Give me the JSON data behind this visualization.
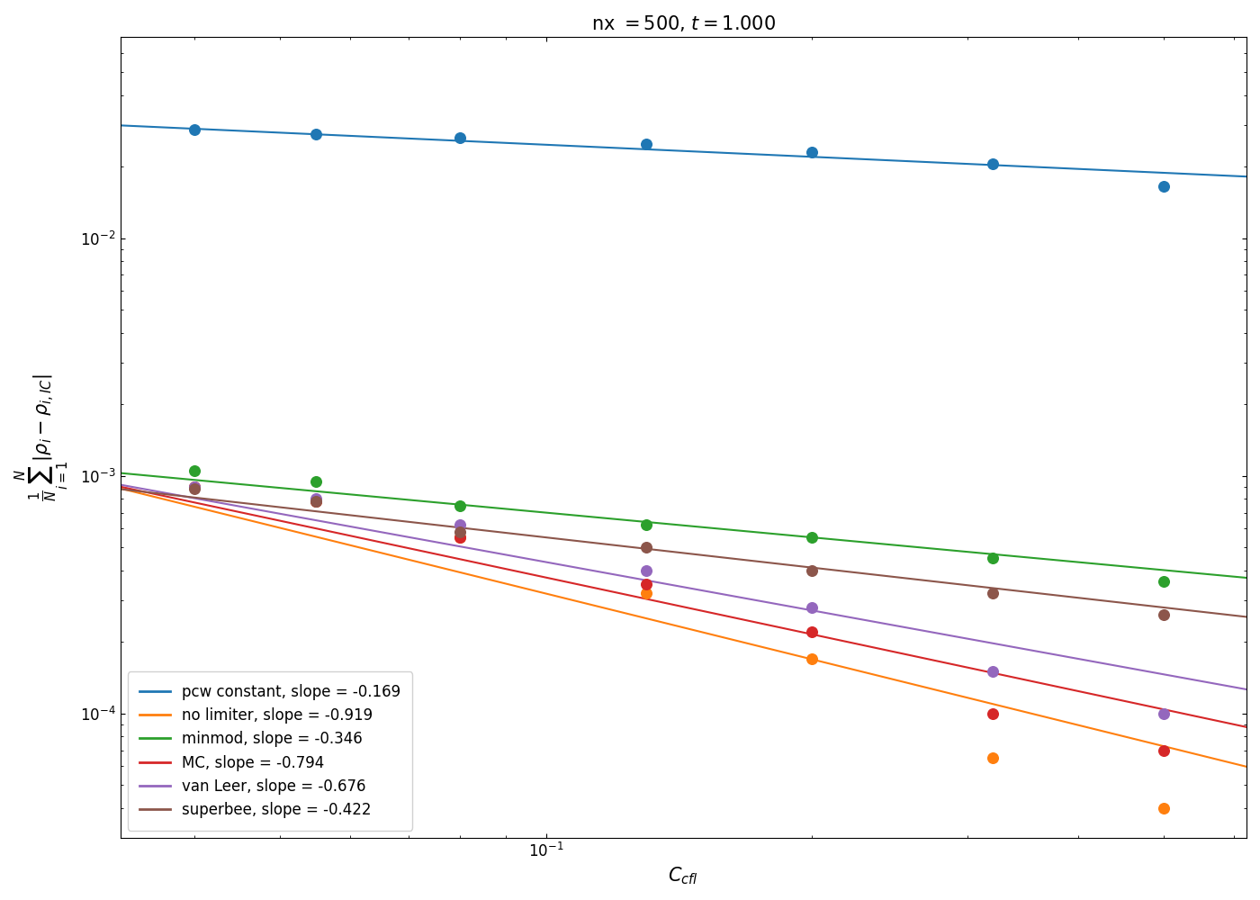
{
  "title": "$\\mathrm{nx} = 500,\\ t = 1.000$",
  "xlabel": "$C_{cfl}$",
  "ylabel": "$\\frac{1}{N}\\sum_{i=1}^{N}|\\rho_i - \\rho_{i,IC}|$",
  "series": [
    {
      "label": "pcw constant, slope = -0.169",
      "color": "#1f77b4",
      "slope": -0.169,
      "cfl_values": [
        0.04,
        0.055,
        0.08,
        0.13,
        0.2,
        0.32,
        0.5
      ],
      "y_values": [
        0.0285,
        0.0275,
        0.0265,
        0.0248,
        0.023,
        0.0205,
        0.0165
      ]
    },
    {
      "label": "no limiter, slope = -0.919",
      "color": "#ff7f0e",
      "slope": -0.919,
      "cfl_values": [
        0.04,
        0.055,
        0.08,
        0.13,
        0.2,
        0.32,
        0.5
      ],
      "y_values": [
        0.0009,
        0.00078,
        0.00055,
        0.00032,
        0.00017,
        6.5e-05,
        4e-05
      ]
    },
    {
      "label": "minmod, slope = -0.346",
      "color": "#2ca02c",
      "slope": -0.346,
      "cfl_values": [
        0.04,
        0.055,
        0.08,
        0.13,
        0.2,
        0.32,
        0.5
      ],
      "y_values": [
        0.00105,
        0.00095,
        0.00075,
        0.00062,
        0.00055,
        0.00045,
        0.00036
      ]
    },
    {
      "label": "MC, slope = -0.794",
      "color": "#d62728",
      "slope": -0.794,
      "cfl_values": [
        0.04,
        0.055,
        0.08,
        0.13,
        0.2,
        0.32,
        0.5
      ],
      "y_values": [
        0.0009,
        0.00078,
        0.00055,
        0.00035,
        0.00022,
        0.0001,
        7e-05
      ]
    },
    {
      "label": "van Leer, slope = -0.676",
      "color": "#9467bd",
      "slope": -0.676,
      "cfl_values": [
        0.04,
        0.055,
        0.08,
        0.13,
        0.2,
        0.32,
        0.5
      ],
      "y_values": [
        0.0009,
        0.0008,
        0.00062,
        0.0004,
        0.00028,
        0.00015,
        0.0001
      ]
    },
    {
      "label": "superbee, slope = -0.422",
      "color": "#8c564b",
      "slope": -0.422,
      "cfl_values": [
        0.04,
        0.055,
        0.08,
        0.13,
        0.2,
        0.32,
        0.5
      ],
      "y_values": [
        0.00088,
        0.00078,
        0.00058,
        0.0005,
        0.0004,
        0.00032,
        0.00026
      ]
    }
  ],
  "xlim": [
    0.033,
    0.62
  ],
  "ylim": [
    3e-05,
    0.07
  ],
  "figsize": [
    14.0,
    10.0
  ],
  "dpi": 100
}
